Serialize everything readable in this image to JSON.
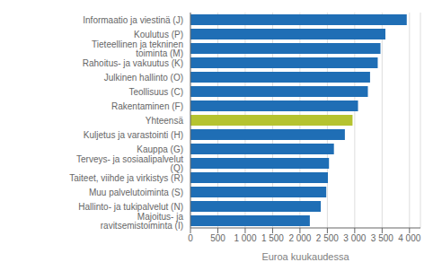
{
  "chart_data": {
    "type": "bar",
    "orientation": "horizontal",
    "categories": [
      "Majoitus- ja ravitsemistoiminta (I)",
      "Hallinto- ja tukipalvelut (N)",
      "Muu palvelutoiminta (S)",
      "Taiteet, viihde ja virkistys (R)",
      "Terveys- ja sosiaalipalvelut (Q)",
      "Kauppa (G)",
      "Kuljetus ja varastointi (H)",
      "Yhteensä",
      "Rakentaminen (F)",
      "Teollisuus (C)",
      "Julkinen hallinto (O)",
      "Rahoitus- ja vakuutus (K)",
      "Tieteellinen ja tekninen toiminta (M)",
      "Koulutus (P)",
      "Informaatio ja viestinä (J)"
    ],
    "values": [
      2180,
      2380,
      2480,
      2510,
      2530,
      2620,
      2820,
      2960,
      3060,
      3240,
      3280,
      3420,
      3470,
      3560,
      3950
    ],
    "colors": [
      "#1f6eb5",
      "#1f6eb5",
      "#1f6eb5",
      "#1f6eb5",
      "#1f6eb5",
      "#1f6eb5",
      "#1f6eb5",
      "#b5c330",
      "#1f6eb5",
      "#1f6eb5",
      "#1f6eb5",
      "#1f6eb5",
      "#1f6eb5",
      "#1f6eb5",
      "#1f6eb5"
    ],
    "xlabel": "Euroa kuukaudessa",
    "xlim": [
      0,
      4200
    ],
    "xticks": [
      0,
      500,
      {
        "value": 1000,
        "label": "1 000"
      },
      {
        "value": 1500,
        "label": "1 500"
      },
      {
        "value": 2000,
        "label": "2 000"
      },
      {
        "value": 2500,
        "label": "2 500"
      },
      {
        "value": 3000,
        "label": "3 000"
      },
      {
        "value": 3500,
        "label": "3 500"
      },
      {
        "value": 4000,
        "label": "4 000"
      }
    ],
    "grid": true
  }
}
